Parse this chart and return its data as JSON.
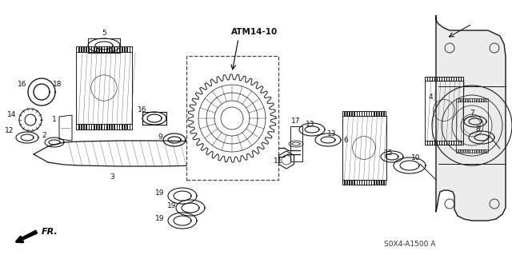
{
  "bg_color": "#ffffff",
  "diagram_code": "S0X4-A1500 A",
  "atm_label": "ATM14-10",
  "fr_label": "FR.",
  "line_color": "#1a1a1a",
  "text_color": "#111111",
  "fig_w": 6.4,
  "fig_h": 3.19,
  "dpi": 100,
  "xlim": [
    0,
    640
  ],
  "ylim": [
    0,
    319
  ]
}
